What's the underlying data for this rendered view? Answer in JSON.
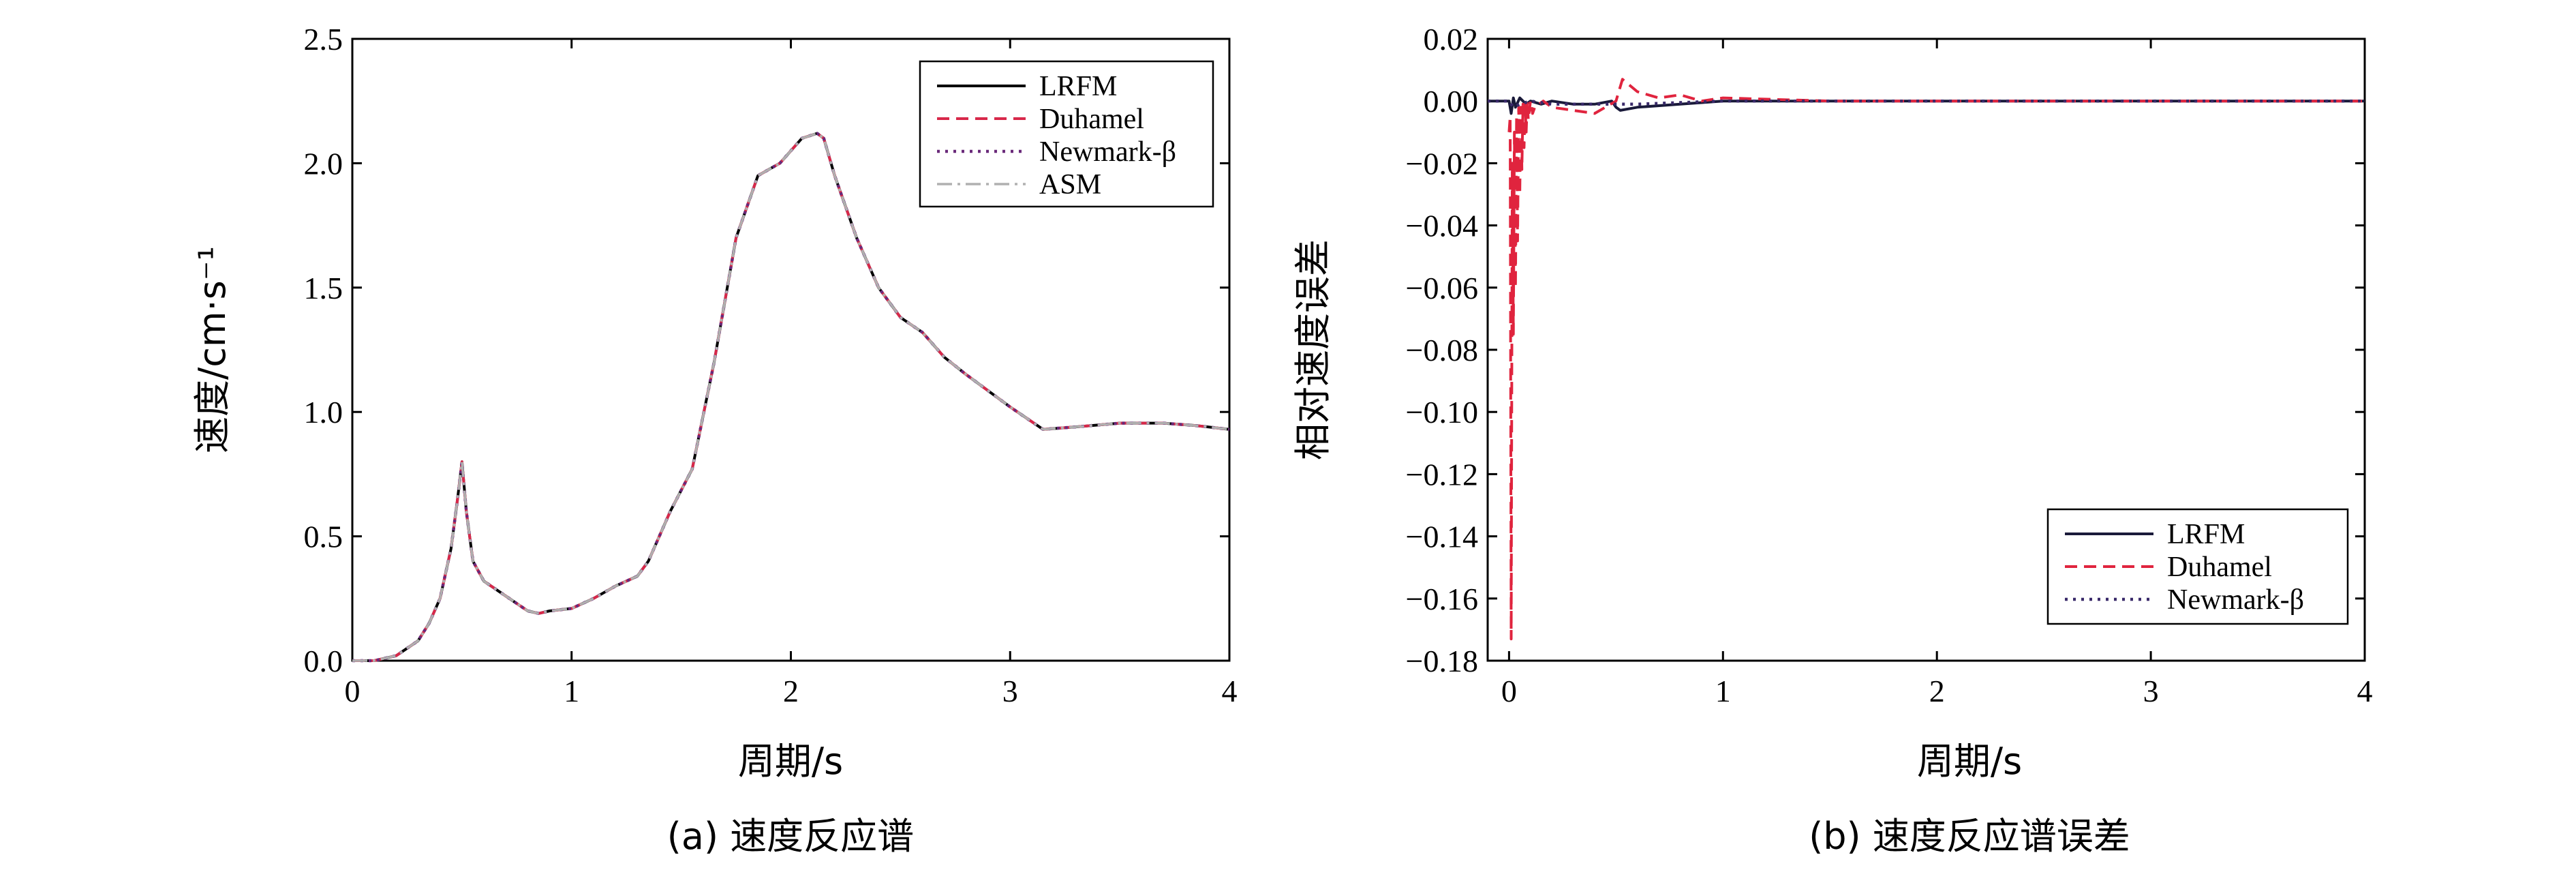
{
  "chart_data": [
    {
      "type": "line",
      "xlabel": "周期/s",
      "ylabel": "速度/cm·s⁻¹",
      "caption": "(a) 速度反应谱",
      "xlim": [
        0,
        4
      ],
      "ylim": [
        0,
        2.5
      ],
      "xticks": [
        "0",
        "1",
        "2",
        "3",
        "4"
      ],
      "yticks": [
        "0.0",
        "0.5",
        "1.0",
        "1.5",
        "2.0",
        "2.5"
      ],
      "legend_position": "top-right",
      "series": [
        {
          "name": "LRFM",
          "style": "solid",
          "color": "#000000",
          "x": [
            0,
            0.1,
            0.2,
            0.3,
            0.35,
            0.4,
            0.45,
            0.48,
            0.5,
            0.52,
            0.55,
            0.6,
            0.7,
            0.8,
            0.85,
            0.9,
            1.0,
            1.1,
            1.2,
            1.3,
            1.35,
            1.45,
            1.55,
            1.65,
            1.75,
            1.85,
            1.95,
            2.05,
            2.12,
            2.15,
            2.2,
            2.3,
            2.4,
            2.5,
            2.6,
            2.7,
            2.8,
            3.0,
            3.15,
            3.3,
            3.5,
            3.7,
            3.85,
            4.0
          ],
          "y": [
            0.0,
            0.0,
            0.02,
            0.08,
            0.15,
            0.25,
            0.45,
            0.65,
            0.8,
            0.6,
            0.4,
            0.32,
            0.26,
            0.2,
            0.19,
            0.2,
            0.21,
            0.25,
            0.3,
            0.34,
            0.4,
            0.6,
            0.77,
            1.2,
            1.7,
            1.95,
            2.0,
            2.1,
            2.12,
            2.1,
            1.95,
            1.7,
            1.5,
            1.38,
            1.32,
            1.22,
            1.15,
            1.02,
            0.93,
            0.94,
            0.955,
            0.955,
            0.945,
            0.93
          ]
        },
        {
          "name": "Duhamel",
          "style": "dashed",
          "color": "#d8284a",
          "same_as": "LRFM"
        },
        {
          "name": "Newmark-β",
          "style": "dotted",
          "color": "#6a2a7a",
          "same_as": "LRFM"
        },
        {
          "name": "ASM",
          "style": "dashdot",
          "color": "#b0b0b0",
          "same_as": "LRFM"
        }
      ]
    },
    {
      "type": "line",
      "xlabel": "周期/s",
      "ylabel": "相对速度误差",
      "caption": "(b) 速度反应谱误差",
      "xlim": [
        -0.1,
        4
      ],
      "ylim": [
        -0.18,
        0.02
      ],
      "xticks": [
        "0",
        "1",
        "2",
        "3",
        "4"
      ],
      "yticks": [
        "0.02",
        "0.00",
        "−0.02",
        "−0.04",
        "−0.06",
        "−0.08",
        "−0.10",
        "−0.12",
        "−0.14",
        "−0.16",
        "−0.18"
      ],
      "legend_position": "bottom-right",
      "series": [
        {
          "name": "LRFM",
          "style": "solid",
          "color": "#1a1a3a",
          "x": [
            -0.1,
            0.0,
            0.01,
            0.02,
            0.03,
            0.05,
            0.08,
            0.1,
            0.15,
            0.2,
            0.3,
            0.4,
            0.48,
            0.5,
            0.52,
            0.6,
            0.8,
            1.0,
            2.0,
            3.0,
            4.0
          ],
          "y": [
            0.0,
            0.0,
            -0.004,
            0.001,
            -0.002,
            0.001,
            -0.001,
            0.0,
            -0.001,
            0.0,
            -0.001,
            -0.001,
            0.0,
            -0.002,
            -0.003,
            -0.002,
            -0.001,
            0.0,
            0.0,
            0.0,
            0.0
          ]
        },
        {
          "name": "Duhamel",
          "style": "dashed",
          "color": "#e0243e",
          "x": [
            0.0,
            0.005,
            0.01,
            0.015,
            0.02,
            0.025,
            0.03,
            0.035,
            0.04,
            0.045,
            0.05,
            0.055,
            0.06,
            0.065,
            0.07,
            0.075,
            0.08,
            0.085,
            0.09,
            0.1,
            0.11,
            0.12,
            0.14,
            0.16,
            0.2,
            0.3,
            0.4,
            0.5,
            0.53,
            0.6,
            0.7,
            0.8,
            0.9,
            1.0,
            1.5,
            2.0,
            3.0,
            4.0
          ],
          "y": [
            -0.01,
            -0.005,
            -0.173,
            -0.02,
            -0.075,
            -0.01,
            -0.06,
            -0.005,
            -0.045,
            -0.002,
            -0.03,
            -0.002,
            -0.022,
            -0.001,
            -0.015,
            -0.001,
            -0.01,
            0.0,
            -0.006,
            0.0,
            -0.004,
            -0.002,
            -0.001,
            0.0,
            -0.002,
            -0.003,
            -0.004,
            0.0,
            0.007,
            0.003,
            0.001,
            0.002,
            0.0,
            0.001,
            0.0,
            0.0,
            0.0,
            0.0
          ]
        },
        {
          "name": "Newmark-β",
          "style": "dotted",
          "color": "#3a2a6a",
          "x": [
            -0.1,
            0.0,
            0.02,
            0.05,
            0.1,
            0.2,
            0.4,
            0.6,
            1.0,
            2.0,
            4.0
          ],
          "y": [
            0.0,
            0.0,
            -0.002,
            -0.001,
            0.0,
            -0.001,
            -0.001,
            -0.001,
            0.0,
            0.0,
            0.0
          ]
        }
      ]
    }
  ]
}
